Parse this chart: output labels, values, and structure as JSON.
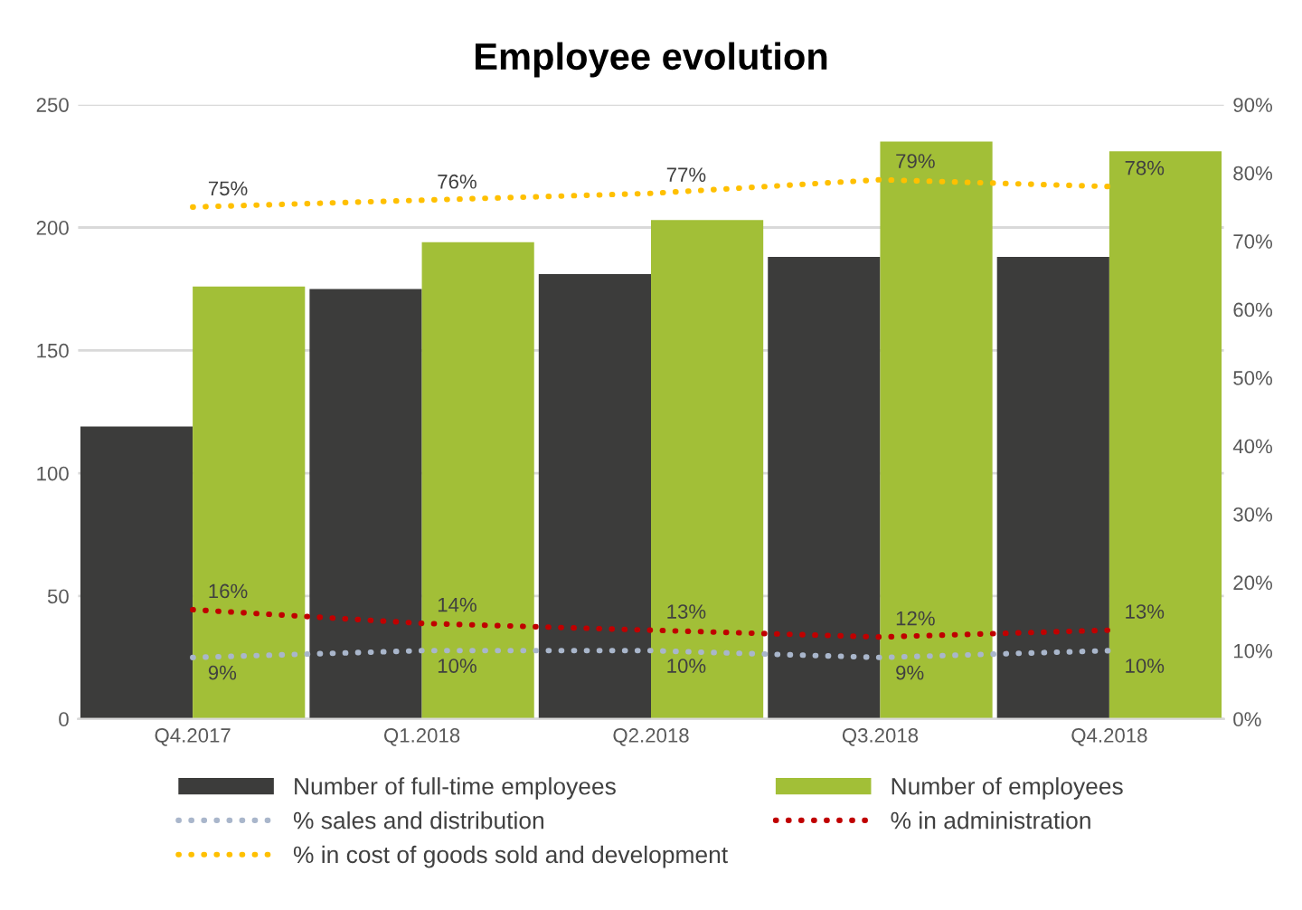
{
  "chart_data": {
    "type": "bar",
    "title": "Employee evolution",
    "categories": [
      "Q4.2017",
      "Q1.2018",
      "Q2.2018",
      "Q3.2018",
      "Q4.2018"
    ],
    "series": [
      {
        "name": "Number of full-time employees",
        "color": "#3c3c3b",
        "values": [
          119,
          175,
          181,
          188,
          188
        ]
      },
      {
        "name": "Number of employees",
        "color": "#a2bf37",
        "values": [
          176,
          194,
          203,
          235,
          231
        ]
      },
      {
        "name": "% sales and distribution",
        "type": "line",
        "axis": "y2",
        "color": "#a9b6cb",
        "values": [
          9,
          10,
          10,
          9,
          10
        ],
        "value_labels": [
          "9%",
          "10%",
          "10%",
          "9%",
          "10%"
        ]
      },
      {
        "name": "% in administration",
        "type": "line",
        "axis": "y2",
        "color": "#c00000",
        "values": [
          16,
          14,
          13,
          12,
          13
        ],
        "value_labels": [
          "16%",
          "14%",
          "13%",
          "12%",
          "13%"
        ]
      },
      {
        "name": "% in cost of goods sold and development",
        "type": "line",
        "axis": "y2",
        "color": "#ffc000",
        "values": [
          75,
          76,
          77,
          79,
          78
        ],
        "value_labels": [
          "75%",
          "76%",
          "77%",
          "79%",
          "78%"
        ]
      }
    ],
    "ylim": [
      0,
      250
    ],
    "yticks": [
      0,
      50,
      100,
      150,
      200,
      250
    ],
    "y2lim": [
      0,
      90
    ],
    "y2ticks": [
      {
        "value": 0,
        "label": "0%"
      },
      {
        "value": 10,
        "label": "10%"
      },
      {
        "value": 20,
        "label": "20%"
      },
      {
        "value": 30,
        "label": "30%"
      },
      {
        "value": 40,
        "label": "40%"
      },
      {
        "value": 50,
        "label": "50%"
      },
      {
        "value": 60,
        "label": "60%"
      },
      {
        "value": 70,
        "label": "70%"
      },
      {
        "value": 80,
        "label": "80%"
      },
      {
        "value": 90,
        "label": "90%"
      }
    ],
    "grid": "y",
    "legend": "bottom",
    "line_style": "dotted",
    "marker": "none"
  }
}
